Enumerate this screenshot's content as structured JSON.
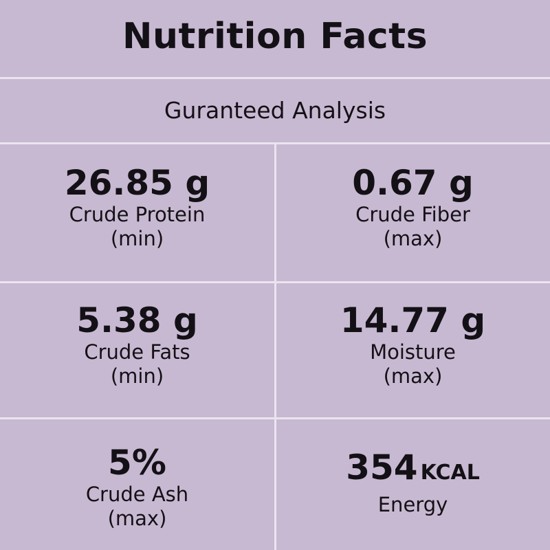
{
  "title": "Nutrition Facts",
  "subtitle": "Guranteed Analysis",
  "cells": [
    {
      "value": "26.85 g",
      "label": "Crude Protein",
      "qualifier": "(min)"
    },
    {
      "value": "0.67 g",
      "label": "Crude Fiber",
      "qualifier": "(max)"
    },
    {
      "value": "5.38 g",
      "label": "Crude Fats",
      "qualifier": "(min)"
    },
    {
      "value": "14.77 g",
      "label": "Moisture",
      "qualifier": "(max)"
    },
    {
      "value": "5%",
      "label": "Crude Ash",
      "qualifier": "(max)"
    },
    {
      "value": "354",
      "unit": "KCAL",
      "label": "Energy"
    }
  ],
  "colors": {
    "background": "#c8b9d2",
    "divider": "#ebe4f0",
    "text": "#141116"
  }
}
